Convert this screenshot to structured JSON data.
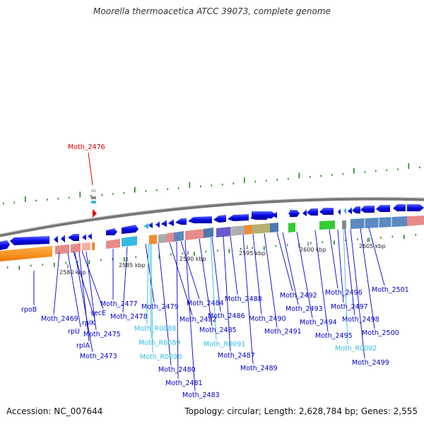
{
  "title": "Moorella thermoacetica ATCC 39073, complete genome",
  "accession": "Accession: NC_007644",
  "summary": "Topology: circular; Length: 2,628,784 bp; Genes: 2,555",
  "highlight_gene": "Moth_2476",
  "scale_labels": [
    "2580 kbp",
    "2585 kbp",
    "2590 kbp",
    "2595 kbp",
    "2600 kbp",
    "2605 kbp"
  ],
  "gene_labels": [
    {
      "text": "rpoB",
      "color": "#0000cc"
    },
    {
      "text": "Moth_2469",
      "color": "#0000cc"
    },
    {
      "text": "rplK",
      "color": "#0000cc"
    },
    {
      "text": "secE",
      "color": "#0000cc"
    },
    {
      "text": "rpU",
      "color": "#0000cc"
    },
    {
      "text": "rplA",
      "color": "#0000cc"
    },
    {
      "text": "Moth_2475",
      "color": "#0000cc"
    },
    {
      "text": "Moth_2473",
      "color": "#0000cc"
    },
    {
      "text": "Moth_2477",
      "color": "#0000cc"
    },
    {
      "text": "Moth_2478",
      "color": "#0000cc"
    },
    {
      "text": "Moth_2479",
      "color": "#0000cc"
    },
    {
      "text": "Moth_R0088",
      "color": "#33bbe0"
    },
    {
      "text": "Moth_R0089",
      "color": "#33bbe0"
    },
    {
      "text": "Moth_R0090",
      "color": "#33bbe0"
    },
    {
      "text": "Moth_2480",
      "color": "#0000cc"
    },
    {
      "text": "Moth_2481",
      "color": "#0000cc"
    },
    {
      "text": "Moth_2483",
      "color": "#0000cc"
    },
    {
      "text": "Moth_2482",
      "color": "#0000cc"
    },
    {
      "text": "Moth_2484",
      "color": "#0000cc"
    },
    {
      "text": "Moth_2485",
      "color": "#0000cc"
    },
    {
      "text": "Moth_R0091",
      "color": "#33bbe0"
    },
    {
      "text": "Moth_2486",
      "color": "#0000cc"
    },
    {
      "text": "Moth_2487",
      "color": "#0000cc"
    },
    {
      "text": "Moth_2488",
      "color": "#0000cc"
    },
    {
      "text": "Moth_2489",
      "color": "#0000cc"
    },
    {
      "text": "Moth_2490",
      "color": "#0000cc"
    },
    {
      "text": "Moth_2491",
      "color": "#0000cc"
    },
    {
      "text": "Moth_2492",
      "color": "#0000cc"
    },
    {
      "text": "Moth_2493",
      "color": "#0000cc"
    },
    {
      "text": "Moth_2494",
      "color": "#0000cc"
    },
    {
      "text": "Moth_2495",
      "color": "#0000cc"
    },
    {
      "text": "Moth_2496",
      "color": "#0000cc"
    },
    {
      "text": "Moth_2497",
      "color": "#0000cc"
    },
    {
      "text": "Moth_R0092",
      "color": "#33bbe0"
    },
    {
      "text": "Moth_2498",
      "color": "#0000cc"
    },
    {
      "text": "Moth_2499",
      "color": "#0000cc"
    },
    {
      "text": "Moth_2500",
      "color": "#0000cc"
    },
    {
      "text": "Moth_2501",
      "color": "#0000cc"
    }
  ],
  "colors": {
    "gene_blue": "#0a0ae6",
    "rrna_cyan": "#33bbe0",
    "highlight_red": "#e00000",
    "backbone": "#9a9a9a",
    "gc_green": "#1a8a1a"
  }
}
